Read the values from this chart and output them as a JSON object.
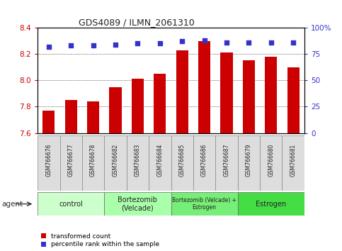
{
  "title": "GDS4089 / ILMN_2061310",
  "samples": [
    "GSM766676",
    "GSM766677",
    "GSM766678",
    "GSM766682",
    "GSM766683",
    "GSM766684",
    "GSM766685",
    "GSM766686",
    "GSM766687",
    "GSM766679",
    "GSM766680",
    "GSM766681"
  ],
  "transformed_count": [
    7.77,
    7.85,
    7.84,
    7.95,
    8.01,
    8.05,
    8.23,
    8.3,
    8.21,
    8.15,
    8.18,
    8.1
  ],
  "percentile_rank": [
    82,
    83,
    83,
    84,
    85,
    85,
    87,
    88,
    86,
    86,
    86,
    86
  ],
  "ylim_left": [
    7.6,
    8.4
  ],
  "ylim_right": [
    0,
    100
  ],
  "yticks_left": [
    7.6,
    7.8,
    8.0,
    8.2,
    8.4
  ],
  "yticks_right": [
    0,
    25,
    50,
    75,
    100
  ],
  "bar_color": "#cc0000",
  "dot_color": "#3333cc",
  "bar_bottom": 7.6,
  "groups": [
    {
      "label": "control",
      "start": 0,
      "end": 3,
      "color": "#ccffcc"
    },
    {
      "label": "Bortezomib\n(Velcade)",
      "start": 3,
      "end": 6,
      "color": "#aaffaa"
    },
    {
      "label": "Bortezomib (Velcade) +\nEstrogen",
      "start": 6,
      "end": 9,
      "color": "#77ee77"
    },
    {
      "label": "Estrogen",
      "start": 9,
      "end": 12,
      "color": "#44dd44"
    }
  ],
  "agent_label": "agent",
  "legend_items": [
    {
      "color": "#cc0000",
      "label": "transformed count"
    },
    {
      "color": "#3333cc",
      "label": "percentile rank within the sample"
    }
  ],
  "bg_color": "#ffffff",
  "plot_bg": "#ffffff",
  "tick_color_left": "#cc0000",
  "tick_color_right": "#3333cc",
  "spine_color": "#333333",
  "grid_color": "#888888",
  "xtick_bg": "#dddddd"
}
